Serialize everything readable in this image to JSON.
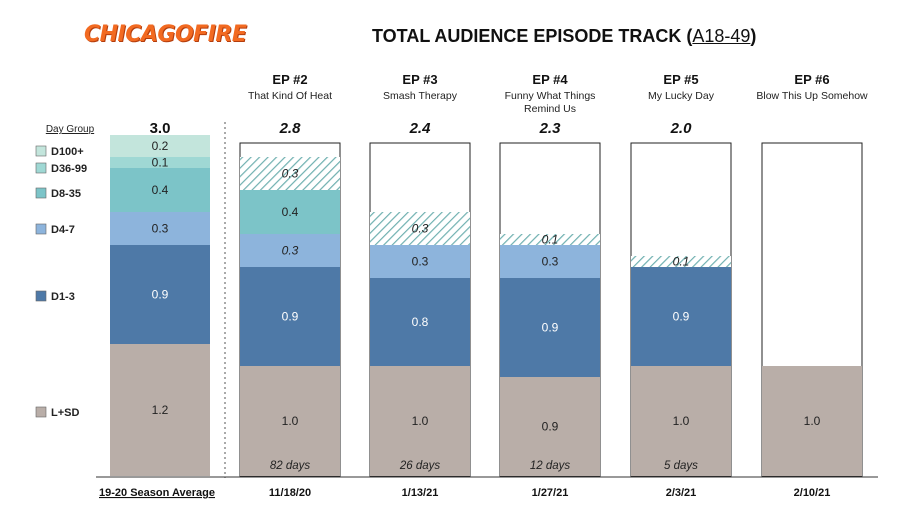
{
  "logo_text": "CHICAGOFIRE",
  "title": {
    "main": "TOTAL AUDIENCE EPISODE TRACK",
    "sub": "A18-49"
  },
  "chart_data": {
    "type": "bar",
    "stacked": true,
    "legend_title": "Day Group",
    "legend": [
      "D100+",
      "D36-99",
      "D8-35",
      "D4-7",
      "D1-3",
      "L+SD"
    ],
    "colors": {
      "L+SD": "#b9aea8",
      "D1-3": "#4e79a7",
      "D4-7": "#8db4dc",
      "D8-35": "#7cc4c8",
      "D36-99": "#9fd8d4",
      "D100+": "#c3e5dc",
      "hatch": "#6fb0b0"
    },
    "columns": [
      {
        "ep": "",
        "ep_title": "",
        "total": "3.0",
        "bottom_label": "19-20 Season Average",
        "days": "",
        "projected": false,
        "segments": [
          {
            "group": "L+SD",
            "value": 1.2,
            "label": "1.2",
            "estimated": false
          },
          {
            "group": "D1-3",
            "value": 0.9,
            "label": "0.9",
            "estimated": false
          },
          {
            "group": "D4-7",
            "value": 0.3,
            "label": "0.3",
            "estimated": false
          },
          {
            "group": "D8-35",
            "value": 0.4,
            "label": "0.4",
            "estimated": false
          },
          {
            "group": "D36-99",
            "value": 0.1,
            "label": "0.1",
            "estimated": false
          },
          {
            "group": "D100+",
            "value": 0.2,
            "label": "0.2",
            "estimated": false
          }
        ]
      },
      {
        "ep": "EP #2",
        "ep_title": "That Kind Of Heat",
        "total": "2.8",
        "bottom_label": "11/18/20",
        "days": "82 days",
        "projected": false,
        "segments": [
          {
            "group": "L+SD",
            "value": 1.0,
            "label": "1.0",
            "estimated": false
          },
          {
            "group": "D1-3",
            "value": 0.9,
            "label": "0.9",
            "estimated": false
          },
          {
            "group": "D4-7",
            "value": 0.3,
            "label": "0.3",
            "estimated": true
          },
          {
            "group": "D8-35",
            "value": 0.4,
            "label": "0.4",
            "estimated": false
          },
          {
            "group": "hatch",
            "value": 0.3,
            "label": "0.3",
            "estimated": true
          }
        ]
      },
      {
        "ep": "EP #3",
        "ep_title": "Smash Therapy",
        "total": "2.4",
        "bottom_label": "1/13/21",
        "days": "26 days",
        "projected": false,
        "segments": [
          {
            "group": "L+SD",
            "value": 1.0,
            "label": "1.0",
            "estimated": false
          },
          {
            "group": "D1-3",
            "value": 0.8,
            "label": "0.8",
            "estimated": false
          },
          {
            "group": "D4-7",
            "value": 0.3,
            "label": "0.3",
            "estimated": false
          },
          {
            "group": "hatch",
            "value": 0.3,
            "label": "0.3",
            "estimated": true
          }
        ]
      },
      {
        "ep": "EP #4",
        "ep_title": "Funny What Things Remind Us",
        "total": "2.3",
        "bottom_label": "1/27/21",
        "days": "12 days",
        "projected": false,
        "segments": [
          {
            "group": "L+SD",
            "value": 0.9,
            "label": "0.9",
            "estimated": false
          },
          {
            "group": "D1-3",
            "value": 0.9,
            "label": "0.9",
            "estimated": false
          },
          {
            "group": "D4-7",
            "value": 0.3,
            "label": "0.3",
            "estimated": false
          },
          {
            "group": "hatch",
            "value": 0.1,
            "label": "0.1",
            "estimated": true
          }
        ]
      },
      {
        "ep": "EP #5",
        "ep_title": "My Lucky Day",
        "total": "2.0",
        "bottom_label": "2/3/21",
        "days": "5 days",
        "projected": false,
        "segments": [
          {
            "group": "L+SD",
            "value": 1.0,
            "label": "1.0",
            "estimated": false
          },
          {
            "group": "D1-3",
            "value": 0.9,
            "label": "0.9",
            "estimated": false
          },
          {
            "group": "hatch",
            "value": 0.1,
            "label": "0.1",
            "estimated": true
          }
        ]
      },
      {
        "ep": "EP #6",
        "ep_title": "Blow This Up Somehow",
        "total": "",
        "bottom_label": "2/10/21",
        "days": "",
        "projected": false,
        "segments": [
          {
            "group": "L+SD",
            "value": 1.0,
            "label": "1.0",
            "estimated": false
          }
        ]
      }
    ],
    "ylim": [
      0,
      3.0
    ]
  }
}
